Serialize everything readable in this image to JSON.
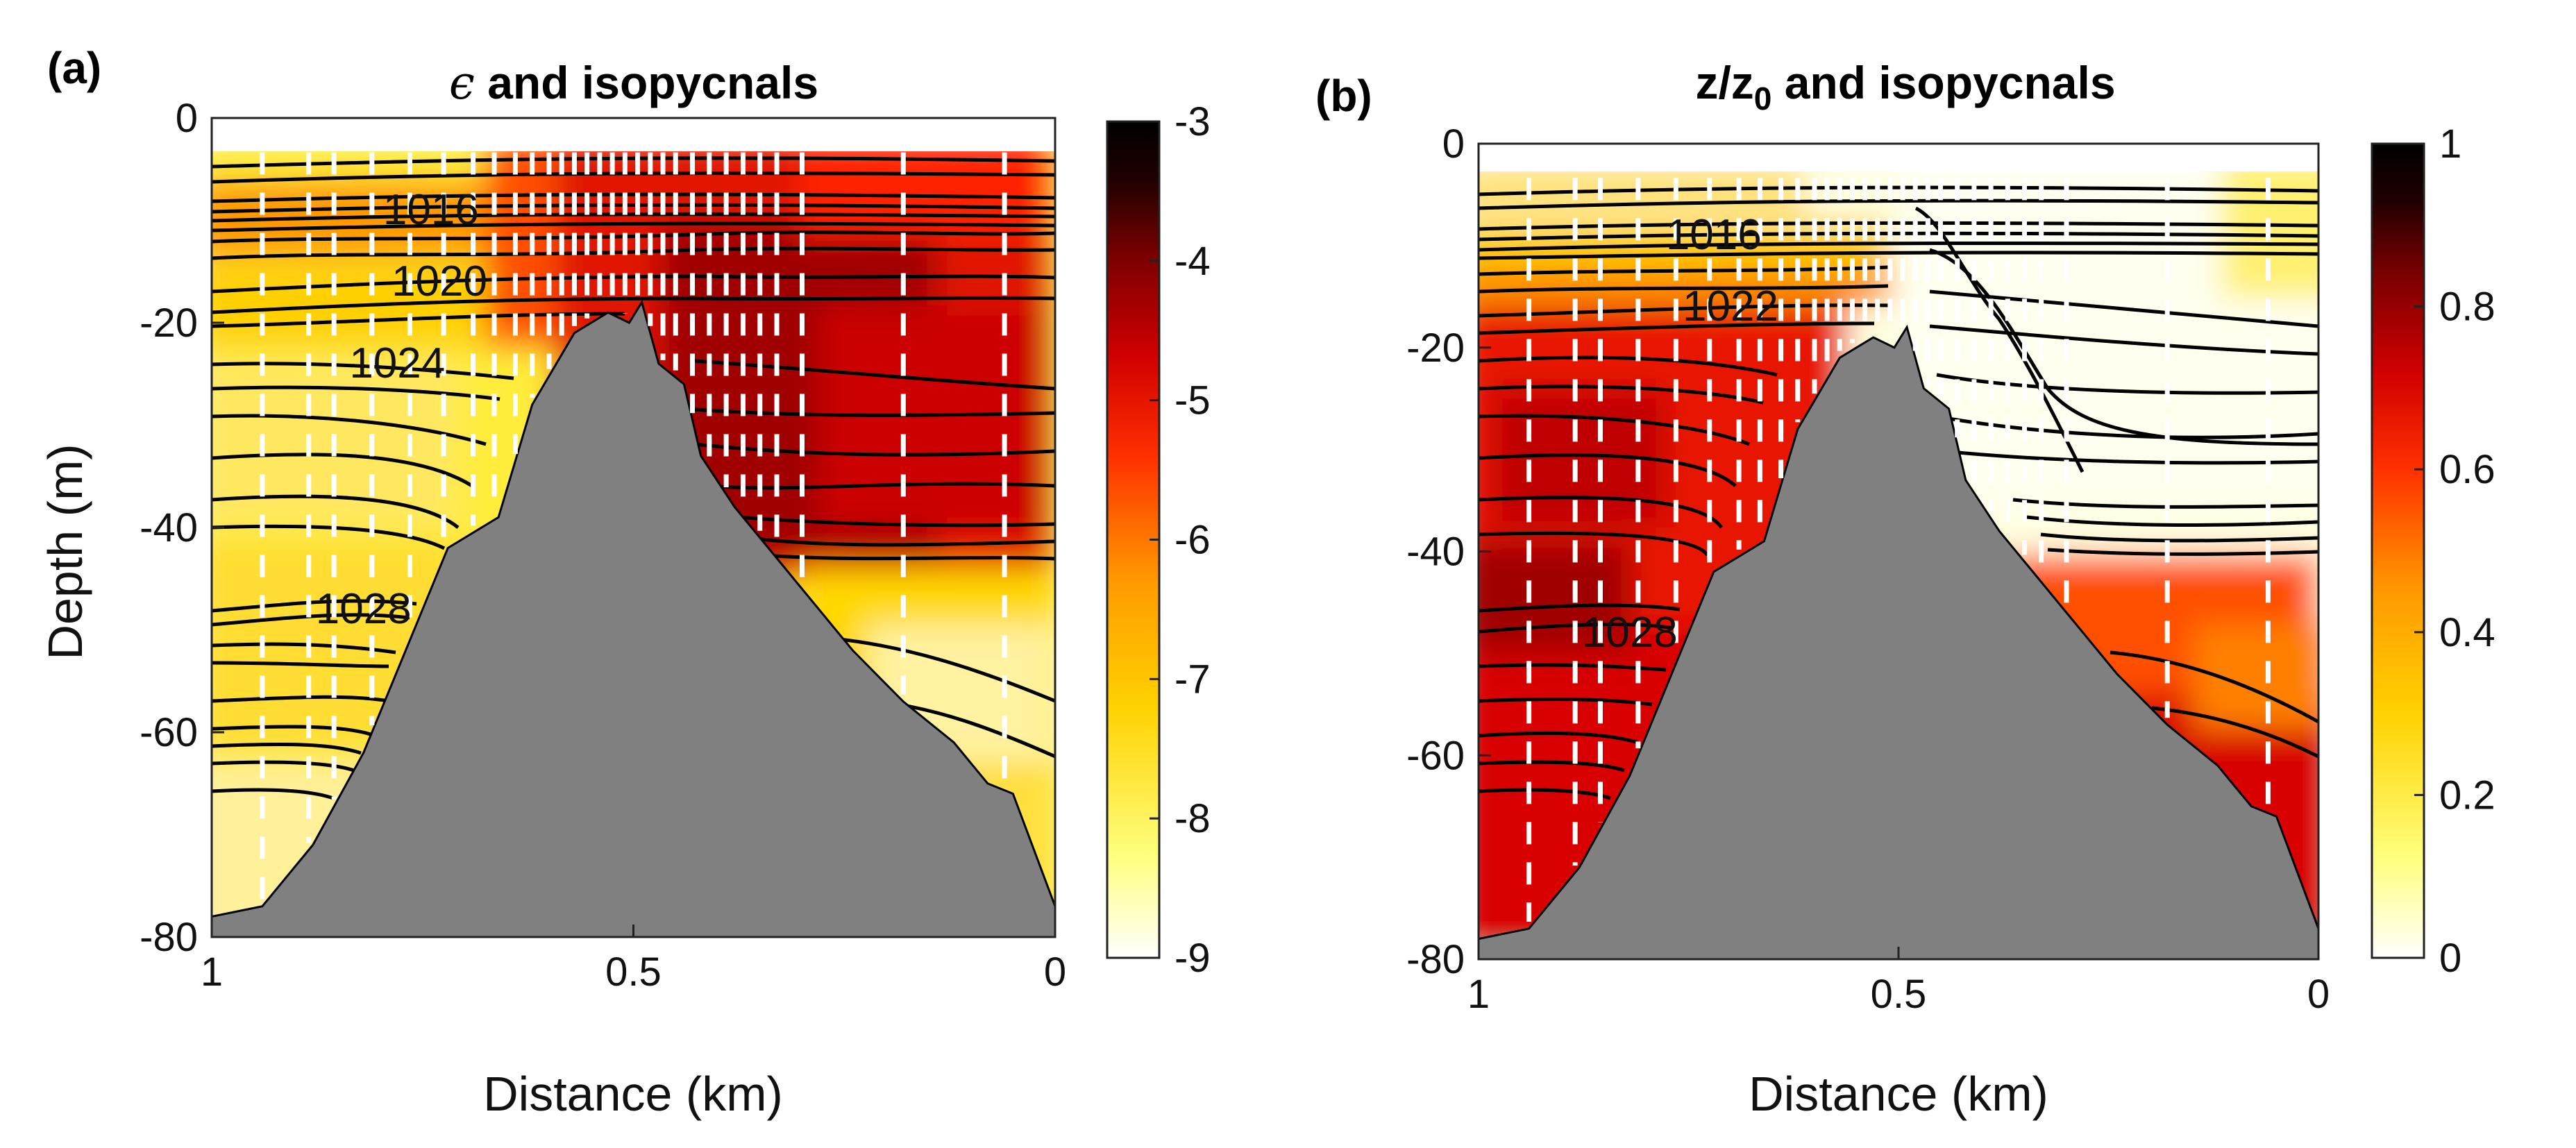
{
  "chart_data": [
    {
      "panel": "(a)",
      "type": "heatmap",
      "title_symbol": "ϵ",
      "title_text": " and isopycnals",
      "xlabel": "Distance (km)",
      "ylabel": "Depth (m)",
      "xlim": [
        1,
        0
      ],
      "ylim": [
        -80,
        0
      ],
      "xticks": [
        1,
        0.5,
        0
      ],
      "xtick_labels": [
        "1",
        "0.5",
        "0"
      ],
      "yticks": [
        0,
        -20,
        -40,
        -60,
        -80
      ],
      "ytick_labels": [
        "0",
        "-20",
        "-40",
        "-60",
        "-80"
      ],
      "colormap": "hot (reversed)",
      "colorbar": {
        "min": -9,
        "max": -3,
        "ticks": [
          -3,
          -4,
          -5,
          -6,
          -7,
          -8,
          -9
        ],
        "tick_labels": [
          "-3",
          "-4",
          "-5",
          "-6",
          "-7",
          "-8",
          "-9"
        ]
      },
      "contour_labels": [
        {
          "text": "1024",
          "x": 0.78,
          "y": -24
        },
        {
          "text": "1020",
          "x": 0.73,
          "y": -16
        },
        {
          "text": "1016",
          "x": 0.74,
          "y": -9
        },
        {
          "text": "1028",
          "x": 0.82,
          "y": -48
        }
      ],
      "bathymetry": {
        "x": [
          1.0,
          0.94,
          0.88,
          0.82,
          0.76,
          0.72,
          0.66,
          0.62,
          0.57,
          0.53,
          0.505,
          0.49,
          0.47,
          0.44,
          0.42,
          0.38,
          0.3,
          0.24,
          0.18,
          0.12,
          0.08,
          0.05,
          0.0
        ],
        "depth": [
          -78,
          -77,
          -71,
          -62,
          -50,
          -42,
          -39,
          -28,
          -21,
          -19,
          -20,
          -18,
          -24,
          -26,
          -33,
          -38,
          -46,
          -52,
          -57,
          -61,
          -65,
          -66,
          -77
        ]
      },
      "profile_x": [
        0.94,
        0.885,
        0.855,
        0.81,
        0.765,
        0.725,
        0.69,
        0.665,
        0.64,
        0.62,
        0.6,
        0.585,
        0.57,
        0.555,
        0.54,
        0.525,
        0.51,
        0.495,
        0.48,
        0.465,
        0.45,
        0.43,
        0.41,
        0.39,
        0.37,
        0.35,
        0.33,
        0.3,
        0.18,
        0.06
      ]
    },
    {
      "panel": "(b)",
      "type": "heatmap",
      "title_main": "z/z",
      "title_sub": "0",
      "title_text": " and isopycnals",
      "xlabel": "Distance (km)",
      "ylabel": "",
      "xlim": [
        1,
        0
      ],
      "ylim": [
        -80,
        0
      ],
      "xticks": [
        1,
        0.5,
        0
      ],
      "xtick_labels": [
        "1",
        "0.5",
        "0"
      ],
      "yticks": [
        0,
        -20,
        -40,
        -60,
        -80
      ],
      "ytick_labels": [
        "0",
        "-20",
        "-40",
        "-60",
        "-80"
      ],
      "colormap": "hot (reversed)",
      "colorbar": {
        "min": 0,
        "max": 1,
        "ticks": [
          1,
          0.8,
          0.6,
          0.4,
          0.2,
          0
        ],
        "tick_labels": [
          "1",
          "0.8",
          "0.6",
          "0.4",
          "0.2",
          "0"
        ]
      },
      "contour_labels": [
        {
          "text": "1016",
          "x": 0.72,
          "y": -9
        },
        {
          "text": "1022",
          "x": 0.7,
          "y": -16
        },
        {
          "text": "1028",
          "x": 0.82,
          "y": -48
        }
      ],
      "bathymetry": {
        "x": [
          1.0,
          0.94,
          0.88,
          0.82,
          0.76,
          0.72,
          0.66,
          0.62,
          0.57,
          0.53,
          0.505,
          0.49,
          0.47,
          0.44,
          0.42,
          0.38,
          0.3,
          0.24,
          0.18,
          0.12,
          0.08,
          0.05,
          0.0
        ],
        "depth": [
          -78,
          -77,
          -71,
          -62,
          -50,
          -42,
          -39,
          -28,
          -21,
          -19,
          -20,
          -18,
          -24,
          -26,
          -33,
          -38,
          -46,
          -52,
          -57,
          -61,
          -65,
          -66,
          -77
        ]
      },
      "profile_x": [
        0.94,
        0.885,
        0.855,
        0.81,
        0.765,
        0.725,
        0.69,
        0.665,
        0.64,
        0.62,
        0.6,
        0.585,
        0.57,
        0.555,
        0.54,
        0.525,
        0.51,
        0.495,
        0.48,
        0.465,
        0.45,
        0.43,
        0.41,
        0.39,
        0.37,
        0.35,
        0.33,
        0.3,
        0.18,
        0.06
      ]
    }
  ],
  "colors": {
    "bathymetry_fill": "#808080",
    "profile_line": "#ffffff",
    "contour_line": "#000000",
    "colormap_stops": [
      "#ffffff",
      "#ffff80",
      "#ffd200",
      "#ff9a00",
      "#ff3000",
      "#d00000",
      "#7a0000",
      "#200000",
      "#000000"
    ]
  }
}
